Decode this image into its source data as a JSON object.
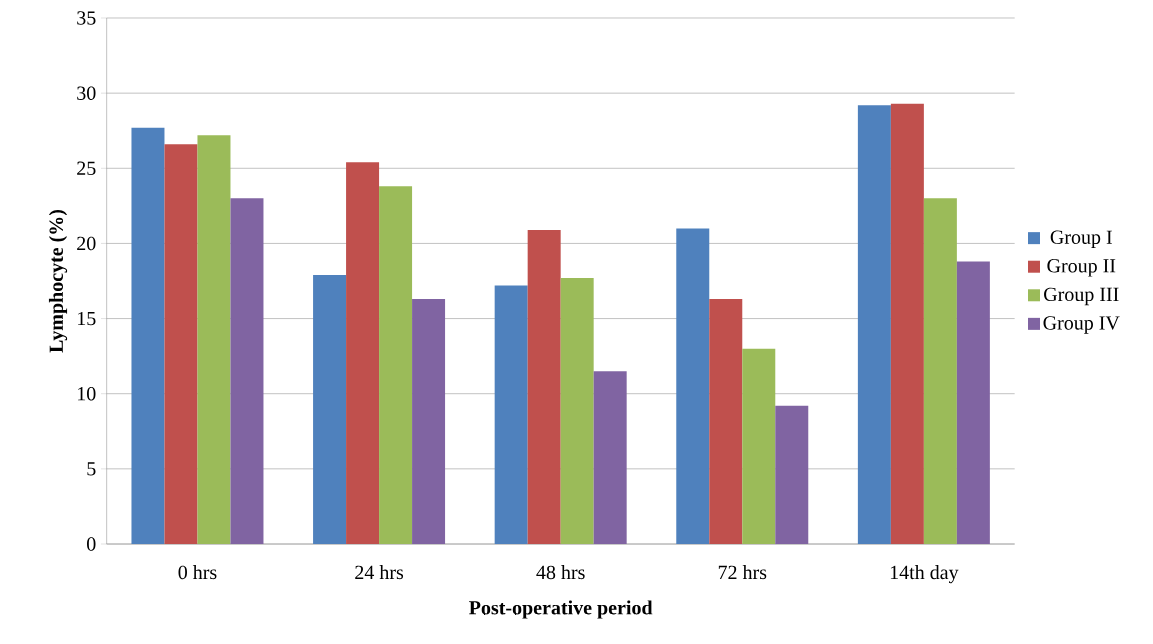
{
  "chart_data": {
    "type": "bar",
    "xlabel": "Post-operative period",
    "ylabel": "Lymphocyte (%)",
    "categories": [
      "0 hrs",
      "24 hrs",
      "48 hrs",
      "72 hrs",
      "14th day"
    ],
    "series": [
      {
        "name": "Group I",
        "color": "#4f81bd",
        "values": [
          27.7,
          17.9,
          17.2,
          21.0,
          29.2
        ]
      },
      {
        "name": "Group II",
        "color": "#c0504d",
        "values": [
          26.6,
          25.4,
          20.9,
          16.3,
          29.3
        ]
      },
      {
        "name": "Group III",
        "color": "#9bbb59",
        "values": [
          27.2,
          23.8,
          17.7,
          13.0,
          23.0
        ]
      },
      {
        "name": "Group IV",
        "color": "#8064a2",
        "values": [
          23.0,
          16.3,
          11.5,
          9.2,
          18.8
        ]
      }
    ],
    "ylim": [
      0,
      35
    ],
    "yticks": [
      0,
      5,
      10,
      15,
      20,
      25,
      30,
      35
    ],
    "grid": "y",
    "legend": "right"
  }
}
